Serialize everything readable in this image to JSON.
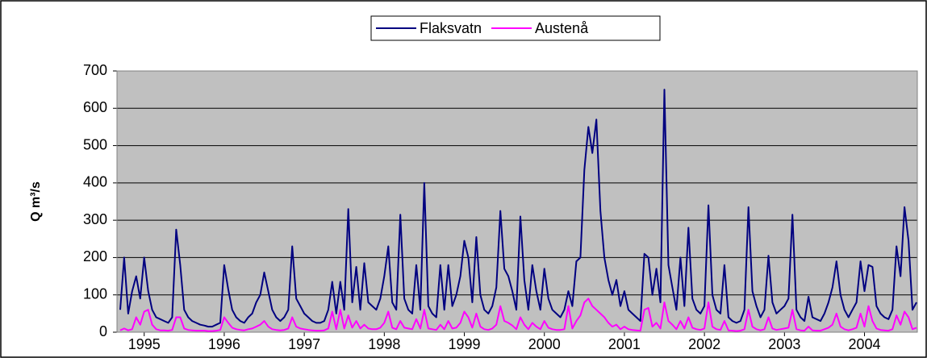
{
  "chart_data": {
    "type": "line",
    "y_label": "Q m³/s",
    "xlim": [
      1994.66,
      2004.66
    ],
    "ylim": [
      0,
      700
    ],
    "yticks": [
      0,
      100,
      200,
      300,
      400,
      500,
      600,
      700
    ],
    "xticks": [
      1995,
      1996,
      1997,
      1998,
      1999,
      2000,
      2001,
      2002,
      2003,
      2004
    ],
    "grid": true,
    "legend": "top",
    "x": [
      1994.7,
      1994.75,
      1994.8,
      1994.85,
      1994.9,
      1994.95,
      1995.0,
      1995.05,
      1995.1,
      1995.15,
      1995.2,
      1995.25,
      1995.3,
      1995.35,
      1995.4,
      1995.45,
      1995.5,
      1995.55,
      1995.6,
      1995.65,
      1995.7,
      1995.75,
      1995.8,
      1995.85,
      1995.9,
      1995.95,
      1996.0,
      1996.05,
      1996.1,
      1996.15,
      1996.2,
      1996.25,
      1996.3,
      1996.35,
      1996.4,
      1996.45,
      1996.5,
      1996.55,
      1996.6,
      1996.65,
      1996.7,
      1996.75,
      1996.8,
      1996.85,
      1996.9,
      1996.95,
      1997.0,
      1997.05,
      1997.1,
      1997.15,
      1997.2,
      1997.25,
      1997.3,
      1997.35,
      1997.4,
      1997.45,
      1997.5,
      1997.55,
      1997.6,
      1997.65,
      1997.7,
      1997.75,
      1997.8,
      1997.85,
      1997.9,
      1997.95,
      1998.0,
      1998.05,
      1998.1,
      1998.15,
      1998.2,
      1998.25,
      1998.3,
      1998.35,
      1998.4,
      1998.45,
      1998.5,
      1998.55,
      1998.6,
      1998.65,
      1998.7,
      1998.75,
      1998.8,
      1998.85,
      1998.9,
      1998.95,
      1999.0,
      1999.05,
      1999.1,
      1999.15,
      1999.2,
      1999.25,
      1999.3,
      1999.35,
      1999.4,
      1999.45,
      1999.5,
      1999.55,
      1999.6,
      1999.65,
      1999.7,
      1999.75,
      1999.8,
      1999.85,
      1999.9,
      1999.95,
      2000.0,
      2000.05,
      2000.1,
      2000.15,
      2000.2,
      2000.25,
      2000.3,
      2000.35,
      2000.4,
      2000.45,
      2000.5,
      2000.55,
      2000.6,
      2000.65,
      2000.7,
      2000.75,
      2000.8,
      2000.85,
      2000.9,
      2000.95,
      2001.0,
      2001.05,
      2001.1,
      2001.15,
      2001.2,
      2001.25,
      2001.3,
      2001.35,
      2001.4,
      2001.45,
      2001.5,
      2001.55,
      2001.6,
      2001.65,
      2001.7,
      2001.75,
      2001.8,
      2001.85,
      2001.9,
      2001.95,
      2002.0,
      2002.05,
      2002.1,
      2002.15,
      2002.2,
      2002.25,
      2002.3,
      2002.35,
      2002.4,
      2002.45,
      2002.5,
      2002.55,
      2002.6,
      2002.65,
      2002.7,
      2002.75,
      2002.8,
      2002.85,
      2002.9,
      2002.95,
      2003.0,
      2003.05,
      2003.1,
      2003.15,
      2003.2,
      2003.25,
      2003.3,
      2003.35,
      2003.4,
      2003.45,
      2003.5,
      2003.55,
      2003.6,
      2003.65,
      2003.7,
      2003.75,
      2003.8,
      2003.85,
      2003.9,
      2003.95,
      2004.0,
      2004.05,
      2004.1,
      2004.15,
      2004.2,
      2004.25,
      2004.3,
      2004.35,
      2004.4,
      2004.45,
      2004.5,
      2004.55,
      2004.6,
      2004.65
    ],
    "series": [
      {
        "name": "Flaksvatn",
        "color": "#000080",
        "values": [
          60,
          200,
          50,
          110,
          150,
          90,
          200,
          110,
          60,
          40,
          35,
          30,
          25,
          40,
          275,
          180,
          60,
          40,
          30,
          25,
          20,
          18,
          15,
          15,
          20,
          25,
          180,
          115,
          60,
          40,
          30,
          25,
          40,
          50,
          80,
          100,
          160,
          110,
          60,
          40,
          30,
          40,
          60,
          230,
          90,
          70,
          50,
          40,
          30,
          25,
          25,
          30,
          60,
          135,
          50,
          135,
          60,
          330,
          80,
          175,
          60,
          185,
          80,
          70,
          60,
          90,
          150,
          230,
          80,
          60,
          315,
          90,
          60,
          50,
          180,
          60,
          400,
          70,
          50,
          40,
          180,
          60,
          180,
          70,
          100,
          150,
          245,
          200,
          80,
          255,
          100,
          60,
          50,
          70,
          120,
          325,
          170,
          150,
          110,
          60,
          310,
          140,
          60,
          180,
          110,
          60,
          170,
          90,
          60,
          50,
          40,
          60,
          110,
          70,
          190,
          200,
          435,
          550,
          480,
          570,
          325,
          200,
          140,
          100,
          140,
          70,
          110,
          60,
          50,
          40,
          30,
          210,
          200,
          100,
          170,
          80,
          650,
          180,
          120,
          60,
          200,
          70,
          280,
          90,
          60,
          50,
          70,
          340,
          100,
          60,
          50,
          180,
          40,
          30,
          25,
          30,
          60,
          335,
          110,
          70,
          40,
          60,
          205,
          80,
          50,
          60,
          70,
          90,
          315,
          60,
          40,
          30,
          95,
          40,
          35,
          30,
          50,
          80,
          120,
          190,
          100,
          60,
          40,
          60,
          80,
          190,
          110,
          180,
          175,
          70,
          50,
          40,
          35,
          60,
          230,
          150,
          335,
          245,
          60,
          80
        ]
      },
      {
        "name": "Austenå",
        "color": "#ff00ff",
        "values": [
          5,
          10,
          5,
          8,
          40,
          20,
          55,
          60,
          20,
          8,
          5,
          5,
          4,
          6,
          40,
          40,
          10,
          6,
          5,
          4,
          4,
          4,
          3,
          3,
          4,
          6,
          40,
          25,
          12,
          8,
          6,
          5,
          8,
          10,
          15,
          20,
          30,
          15,
          8,
          6,
          5,
          6,
          10,
          40,
          15,
          10,
          8,
          6,
          5,
          4,
          4,
          5,
          10,
          55,
          8,
          60,
          10,
          45,
          12,
          30,
          10,
          20,
          10,
          8,
          8,
          12,
          25,
          55,
          12,
          8,
          30,
          12,
          10,
          8,
          35,
          10,
          60,
          10,
          8,
          6,
          20,
          8,
          30,
          10,
          12,
          25,
          55,
          40,
          12,
          50,
          15,
          8,
          6,
          10,
          20,
          70,
          30,
          25,
          18,
          8,
          40,
          20,
          8,
          25,
          15,
          8,
          30,
          12,
          8,
          6,
          6,
          8,
          70,
          10,
          30,
          45,
          80,
          90,
          70,
          60,
          50,
          40,
          25,
          15,
          20,
          8,
          15,
          8,
          6,
          5,
          4,
          60,
          65,
          15,
          25,
          10,
          80,
          30,
          20,
          8,
          30,
          10,
          40,
          12,
          8,
          6,
          10,
          80,
          15,
          8,
          6,
          30,
          5,
          4,
          3,
          4,
          8,
          60,
          15,
          8,
          5,
          8,
          40,
          10,
          6,
          8,
          10,
          12,
          60,
          8,
          5,
          4,
          15,
          5,
          4,
          4,
          8,
          12,
          20,
          50,
          15,
          8,
          5,
          8,
          12,
          50,
          15,
          70,
          30,
          10,
          6,
          5,
          4,
          8,
          45,
          20,
          55,
          40,
          8,
          12
        ]
      }
    ]
  }
}
